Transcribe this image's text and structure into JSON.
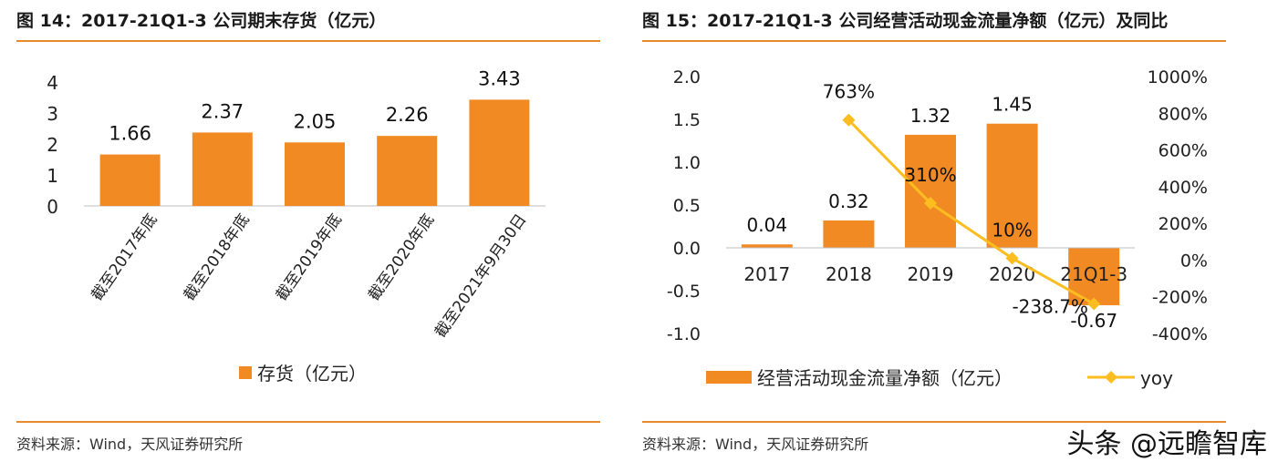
{
  "watermark": "头条 @远瞻智库",
  "left": {
    "title": "图 14：2017-21Q1-3 公司期末存货（亿元）",
    "source": "资料来源：Wind，天风证券研究所",
    "chart_data": {
      "type": "bar",
      "title": "图 14：2017-21Q1-3 公司期末存货（亿元）",
      "categories": [
        "截至2017年底",
        "截至2018年底",
        "截至2019年底",
        "截至2020年底",
        "截至2021年9月30日"
      ],
      "series": [
        {
          "name": "存货（亿元）",
          "values": [
            1.66,
            2.37,
            2.05,
            2.26,
            3.43
          ]
        }
      ],
      "value_labels": [
        "1.66",
        "2.37",
        "2.05",
        "2.26",
        "3.43"
      ],
      "ylim": [
        0,
        4
      ],
      "yticks": [
        "0",
        "1",
        "2",
        "3",
        "4"
      ],
      "grid": false,
      "legend": "bottom",
      "color": "#f28a24"
    }
  },
  "right": {
    "title": "图 15：2017-21Q1-3 公司经营活动现金流量净额（亿元）及同比",
    "source": "资料来源：Wind，天风证券研究所",
    "chart_data": {
      "type": "bar",
      "title": "图 15：2017-21Q1-3 公司经营活动现金流量净额（亿元）及同比",
      "categories": [
        "2017",
        "2018",
        "2019",
        "2020",
        "21Q1-3"
      ],
      "series": [
        {
          "name": "经营活动现金流量净额（亿元）",
          "type": "bar",
          "axis": "left",
          "values": [
            0.04,
            0.32,
            1.32,
            1.45,
            -0.67
          ],
          "labels": [
            "0.04",
            "0.32",
            "1.32",
            "1.45",
            "-0.67"
          ],
          "color": "#f28a24"
        },
        {
          "name": "yoy",
          "type": "line",
          "axis": "right",
          "values": [
            null,
            763,
            310,
            10,
            -238.7
          ],
          "labels": [
            "",
            "763%",
            "310%",
            "10%",
            "-238.7%"
          ],
          "color": "#fbbd1f"
        }
      ],
      "ylim": [
        -1.0,
        2.0
      ],
      "yticks": [
        "-1.0",
        "-0.5",
        "0.0",
        "0.5",
        "1.0",
        "1.5",
        "2.0"
      ],
      "y2lim": [
        -400,
        1000
      ],
      "y2ticks": [
        "-400%",
        "-200%",
        "0%",
        "200%",
        "400%",
        "600%",
        "800%",
        "1000%"
      ],
      "grid": false,
      "legend": "bottom"
    }
  }
}
